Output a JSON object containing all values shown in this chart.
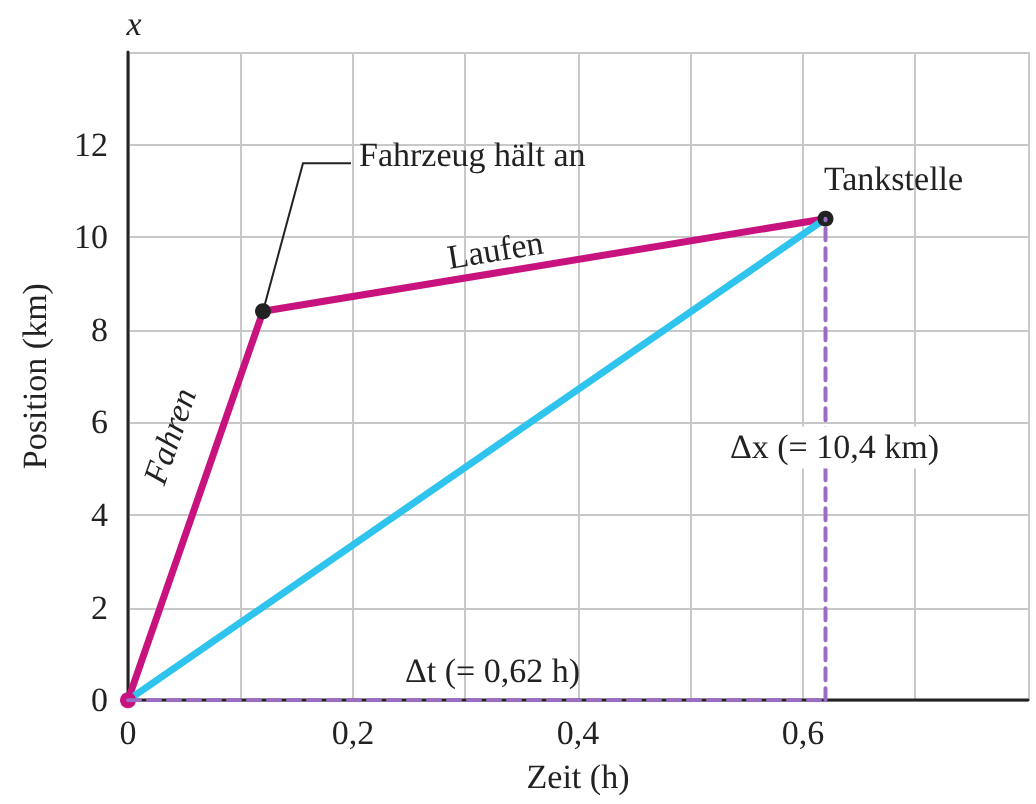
{
  "chart_data": {
    "type": "line",
    "xlabel": "Zeit (h)",
    "ylabel": "Position (km)",
    "xlim": [
      0,
      0.8
    ],
    "ylim": [
      0,
      14
    ],
    "xticks": [
      {
        "value": 0,
        "label": "0"
      },
      {
        "value": 0.1,
        "label": null
      },
      {
        "value": 0.2,
        "label": "0,2"
      },
      {
        "value": 0.3,
        "label": null
      },
      {
        "value": 0.4,
        "label": "0,4"
      },
      {
        "value": 0.5,
        "label": null
      },
      {
        "value": 0.6,
        "label": "0,6"
      },
      {
        "value": 0.7,
        "label": null
      },
      {
        "value": 0.8,
        "label": null
      }
    ],
    "yticks": [
      0,
      2,
      4,
      6,
      8,
      10,
      12,
      {
        "value": 14,
        "label": null
      }
    ],
    "grid": true,
    "marker": "circle",
    "line_style": "solid",
    "series": [
      {
        "color": "#c8127e",
        "x": [
          0,
          0.12,
          0.62
        ],
        "values": [
          0,
          8.4,
          10.4
        ]
      },
      {
        "color": "#2ec4ee",
        "x": [
          0,
          0.62
        ],
        "values": [
          0,
          10.4
        ],
        "marker": "none"
      },
      {
        "color": "#9a6cc4",
        "x": [
          0,
          0.62
        ],
        "values": [
          0,
          0
        ],
        "marker": "none",
        "line_style": "dashed"
      },
      {
        "color": "#9a6cc4",
        "x": [
          0.62,
          0.62
        ],
        "values": [
          0,
          10.4
        ],
        "marker": "none",
        "line_style": "dashed"
      }
    ],
    "annotations": [
      "x",
      {
        "text": "Fahrzeug hält an",
        "x": 0.12,
        "y": 8.4
      },
      {
        "text": "Tankstelle",
        "x": 0.62,
        "y": 10.4
      },
      {
        "text": "Laufen",
        "x": 0.33,
        "y": 9.2
      },
      {
        "text": "Fahren",
        "x": 0.08,
        "y": 5.7
      },
      "Δx (= 10,4 km)",
      "Δt (= 0,62 h)"
    ]
  }
}
